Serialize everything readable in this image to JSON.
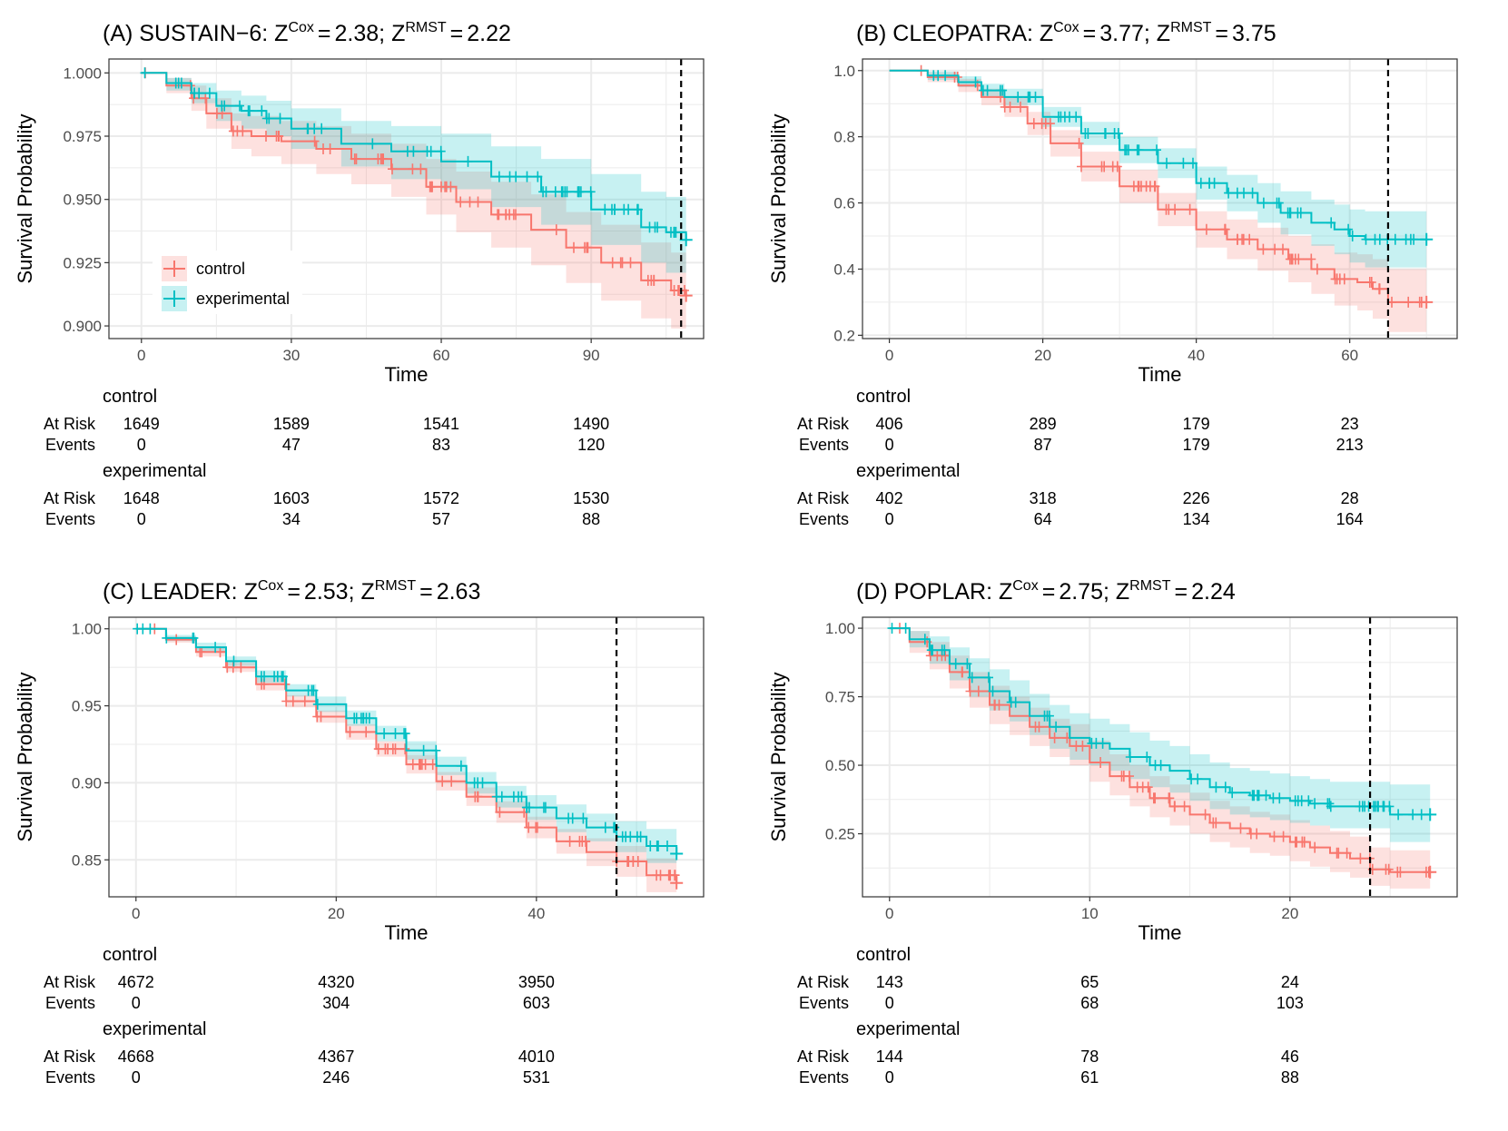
{
  "colors": {
    "control": "#F8766D",
    "experimental": "#00BFC4",
    "grid": "#EBEBEB",
    "frame": "#333333"
  },
  "risk_labels": {
    "at_risk": "At Risk",
    "events": "Events"
  },
  "chart_data": [
    {
      "id": "A",
      "type": "line",
      "title_prefix": "(A) SUSTAIN−6:",
      "z_cox": "2.38",
      "z_rmst": "2.22",
      "title_z_label": "Z",
      "title_cox_sup": "Cox",
      "title_rmst_sup": "RMST",
      "title_eq": "=",
      "title_sep": ";",
      "xlabel": "Time",
      "ylabel": "Survival Probability",
      "xlim": [
        -6.5,
        112.5
      ],
      "ylim": [
        0.895,
        1.0055
      ],
      "xticks": [
        0,
        30,
        60,
        90
      ],
      "xtick_labels": [
        "0",
        "30",
        "60",
        "90"
      ],
      "yticks": [
        0.9,
        0.925,
        0.95,
        0.975,
        1.0
      ],
      "ytick_labels": [
        "0.900",
        "0.925",
        "0.950",
        "0.975",
        "1.000"
      ],
      "cutoff": 108,
      "legend": {
        "show": true,
        "position": "bottom-left",
        "entries": [
          "control",
          "experimental"
        ]
      },
      "series": [
        {
          "name": "control",
          "x": [
            0,
            5,
            10,
            13,
            18,
            22,
            28,
            35,
            42,
            50,
            57,
            63,
            70,
            78,
            85,
            92,
            100,
            106,
            109
          ],
          "y": [
            1.0,
            0.995,
            0.99,
            0.984,
            0.977,
            0.975,
            0.973,
            0.97,
            0.966,
            0.962,
            0.955,
            0.949,
            0.944,
            0.938,
            0.931,
            0.925,
            0.918,
            0.914,
            0.912
          ],
          "lower": [
            1.0,
            0.992,
            0.985,
            0.978,
            0.97,
            0.967,
            0.964,
            0.96,
            0.956,
            0.951,
            0.944,
            0.937,
            0.931,
            0.924,
            0.917,
            0.91,
            0.903,
            0.899,
            0.897
          ],
          "upper": [
            1.0,
            0.998,
            0.995,
            0.99,
            0.984,
            0.983,
            0.981,
            0.979,
            0.976,
            0.972,
            0.966,
            0.961,
            0.957,
            0.952,
            0.945,
            0.94,
            0.933,
            0.929,
            0.927
          ]
        },
        {
          "name": "experimental",
          "x": [
            0,
            5,
            10,
            15,
            20,
            25,
            30,
            40,
            50,
            60,
            70,
            80,
            90,
            100,
            105,
            109
          ],
          "y": [
            1.0,
            0.996,
            0.992,
            0.987,
            0.985,
            0.982,
            0.978,
            0.972,
            0.969,
            0.965,
            0.959,
            0.953,
            0.946,
            0.939,
            0.937,
            0.934
          ],
          "lower": [
            1.0,
            0.993,
            0.988,
            0.981,
            0.978,
            0.975,
            0.97,
            0.963,
            0.958,
            0.954,
            0.947,
            0.94,
            0.932,
            0.925,
            0.921,
            0.916
          ],
          "upper": [
            1.0,
            0.998,
            0.996,
            0.993,
            0.991,
            0.989,
            0.986,
            0.981,
            0.979,
            0.976,
            0.971,
            0.966,
            0.96,
            0.953,
            0.951,
            0.948
          ]
        }
      ],
      "risk_table": {
        "times": [
          0,
          30,
          60,
          90
        ],
        "groups": [
          {
            "name": "control",
            "at_risk": [
              "1649",
              "1589",
              "1541",
              "1490"
            ],
            "events": [
              "0",
              "47",
              "83",
              "120"
            ]
          },
          {
            "name": "experimental",
            "at_risk": [
              "1648",
              "1603",
              "1572",
              "1530"
            ],
            "events": [
              "0",
              "34",
              "57",
              "88"
            ]
          }
        ]
      }
    },
    {
      "id": "B",
      "type": "line",
      "title_prefix": "(B) CLEOPATRA:",
      "z_cox": "3.77",
      "z_rmst": "3.75",
      "title_z_label": "Z",
      "title_cox_sup": "Cox",
      "title_rmst_sup": "RMST",
      "title_eq": "=",
      "title_sep": ";",
      "xlabel": "Time",
      "ylabel": "Survival Probability",
      "xlim": [
        -3.5,
        74
      ],
      "ylim": [
        0.19,
        1.035
      ],
      "xticks": [
        0,
        20,
        40,
        60
      ],
      "xtick_labels": [
        "0",
        "20",
        "40",
        "60"
      ],
      "yticks": [
        0.2,
        0.4,
        0.6,
        0.8,
        1.0
      ],
      "ytick_labels": [
        "0.2",
        "0.4",
        "0.6",
        "0.8",
        "1.0"
      ],
      "cutoff": 65,
      "legend": {
        "show": false
      },
      "series": [
        {
          "name": "control",
          "x": [
            0,
            5,
            9,
            12,
            15,
            18,
            21,
            25,
            30,
            35,
            40,
            44,
            48,
            52,
            55,
            58,
            61,
            63,
            65,
            70
          ],
          "y": [
            1.0,
            0.98,
            0.955,
            0.92,
            0.89,
            0.84,
            0.78,
            0.71,
            0.65,
            0.58,
            0.52,
            0.49,
            0.46,
            0.43,
            0.4,
            0.37,
            0.36,
            0.34,
            0.3,
            0.3
          ],
          "lower": [
            1.0,
            0.965,
            0.935,
            0.895,
            0.86,
            0.805,
            0.74,
            0.665,
            0.6,
            0.53,
            0.465,
            0.43,
            0.395,
            0.36,
            0.325,
            0.29,
            0.275,
            0.25,
            0.21,
            0.21
          ],
          "upper": [
            1.0,
            0.995,
            0.975,
            0.945,
            0.92,
            0.875,
            0.82,
            0.755,
            0.7,
            0.63,
            0.575,
            0.55,
            0.525,
            0.5,
            0.475,
            0.45,
            0.445,
            0.43,
            0.4,
            0.4
          ]
        },
        {
          "name": "experimental",
          "x": [
            0,
            5,
            9,
            12,
            15,
            20,
            25,
            30,
            35,
            40,
            44,
            48,
            51,
            55,
            58,
            60,
            62,
            65,
            70
          ],
          "y": [
            1.0,
            0.985,
            0.965,
            0.94,
            0.92,
            0.86,
            0.81,
            0.76,
            0.72,
            0.66,
            0.63,
            0.6,
            0.57,
            0.54,
            0.52,
            0.5,
            0.49,
            0.49,
            0.49
          ],
          "lower": [
            1.0,
            0.972,
            0.95,
            0.92,
            0.895,
            0.83,
            0.775,
            0.72,
            0.675,
            0.61,
            0.575,
            0.54,
            0.505,
            0.47,
            0.445,
            0.42,
            0.405,
            0.405,
            0.405
          ],
          "upper": [
            1.0,
            0.997,
            0.983,
            0.96,
            0.945,
            0.89,
            0.845,
            0.8,
            0.765,
            0.71,
            0.685,
            0.66,
            0.635,
            0.61,
            0.595,
            0.58,
            0.575,
            0.575,
            0.575
          ]
        }
      ],
      "risk_table": {
        "times": [
          0,
          20,
          40,
          60
        ],
        "groups": [
          {
            "name": "control",
            "at_risk": [
              "406",
              "289",
              "179",
              "23"
            ],
            "events": [
              "0",
              "87",
              "179",
              "213"
            ]
          },
          {
            "name": "experimental",
            "at_risk": [
              "402",
              "318",
              "226",
              "28"
            ],
            "events": [
              "0",
              "64",
              "134",
              "164"
            ]
          }
        ]
      }
    },
    {
      "id": "C",
      "type": "line",
      "title_prefix": "(C) LEADER:",
      "z_cox": "2.53",
      "z_rmst": "2.63",
      "title_z_label": "Z",
      "title_cox_sup": "Cox",
      "title_rmst_sup": "RMST",
      "title_eq": "=",
      "title_sep": ";",
      "xlabel": "Time",
      "ylabel": "Survival Probability",
      "xlim": [
        -2.7,
        56.7
      ],
      "ylim": [
        0.826,
        1.0075
      ],
      "xticks": [
        0,
        20,
        40
      ],
      "xtick_labels": [
        "0",
        "20",
        "40"
      ],
      "yticks": [
        0.85,
        0.9,
        0.95,
        1.0
      ],
      "ytick_labels": [
        "0.85",
        "0.90",
        "0.95",
        "1.00"
      ],
      "cutoff": 48,
      "legend": {
        "show": false
      },
      "series": [
        {
          "name": "control",
          "x": [
            0,
            3,
            6,
            9,
            12,
            15,
            18,
            21,
            24,
            27,
            30,
            33,
            36,
            39,
            42,
            45,
            48,
            51,
            54
          ],
          "y": [
            1.0,
            0.993,
            0.985,
            0.975,
            0.964,
            0.953,
            0.943,
            0.933,
            0.922,
            0.912,
            0.901,
            0.891,
            0.881,
            0.871,
            0.862,
            0.855,
            0.849,
            0.84,
            0.835
          ],
          "lower": [
            1.0,
            0.991,
            0.982,
            0.972,
            0.96,
            0.949,
            0.939,
            0.928,
            0.917,
            0.906,
            0.895,
            0.885,
            0.874,
            0.864,
            0.854,
            0.846,
            0.839,
            0.829,
            0.824
          ],
          "upper": [
            1.0,
            0.995,
            0.988,
            0.978,
            0.968,
            0.957,
            0.947,
            0.938,
            0.927,
            0.918,
            0.907,
            0.897,
            0.888,
            0.878,
            0.87,
            0.864,
            0.859,
            0.851,
            0.846
          ]
        },
        {
          "name": "experimental",
          "x": [
            0,
            3,
            6,
            9,
            12,
            15,
            18,
            21,
            24,
            27,
            30,
            33,
            36,
            39,
            42,
            45,
            48,
            51,
            54
          ],
          "y": [
            1.0,
            0.994,
            0.988,
            0.979,
            0.969,
            0.96,
            0.951,
            0.942,
            0.932,
            0.921,
            0.911,
            0.9,
            0.891,
            0.884,
            0.877,
            0.871,
            0.865,
            0.859,
            0.854
          ],
          "lower": [
            1.0,
            0.992,
            0.985,
            0.976,
            0.965,
            0.956,
            0.946,
            0.937,
            0.927,
            0.915,
            0.905,
            0.893,
            0.884,
            0.876,
            0.868,
            0.862,
            0.855,
            0.848,
            0.843
          ],
          "upper": [
            1.0,
            0.996,
            0.991,
            0.982,
            0.973,
            0.964,
            0.956,
            0.947,
            0.937,
            0.927,
            0.917,
            0.907,
            0.898,
            0.892,
            0.886,
            0.88,
            0.875,
            0.87,
            0.865
          ]
        }
      ],
      "risk_table": {
        "times": [
          0,
          20,
          40
        ],
        "groups": [
          {
            "name": "control",
            "at_risk": [
              "4672",
              "4320",
              "3950"
            ],
            "events": [
              "0",
              "304",
              "603"
            ]
          },
          {
            "name": "experimental",
            "at_risk": [
              "4668",
              "4367",
              "4010"
            ],
            "events": [
              "0",
              "246",
              "531"
            ]
          }
        ]
      }
    },
    {
      "id": "D",
      "type": "line",
      "title_prefix": "(D) POPLAR:",
      "z_cox": "2.75",
      "z_rmst": "2.24",
      "title_z_label": "Z",
      "title_cox_sup": "Cox",
      "title_rmst_sup": "RMST",
      "title_eq": "=",
      "title_sep": ";",
      "xlabel": "Time",
      "ylabel": "Survival Probability",
      "xlim": [
        -1.35,
        28.35
      ],
      "ylim": [
        0.02,
        1.04
      ],
      "xticks": [
        0,
        10,
        20
      ],
      "xtick_labels": [
        "0",
        "10",
        "20"
      ],
      "yticks": [
        0.25,
        0.5,
        0.75,
        1.0
      ],
      "ytick_labels": [
        "0.25",
        "0.50",
        "0.75",
        "1.00"
      ],
      "cutoff": 24,
      "legend": {
        "show": false
      },
      "series": [
        {
          "name": "control",
          "x": [
            0,
            1,
            2,
            3,
            4,
            5,
            6,
            7,
            8,
            9,
            10,
            11,
            12,
            13,
            14,
            15,
            16,
            17,
            18,
            19,
            20,
            21,
            22,
            23,
            24,
            25,
            27
          ],
          "y": [
            1.0,
            0.95,
            0.9,
            0.84,
            0.77,
            0.72,
            0.68,
            0.64,
            0.6,
            0.57,
            0.51,
            0.46,
            0.42,
            0.38,
            0.35,
            0.32,
            0.29,
            0.27,
            0.25,
            0.24,
            0.22,
            0.2,
            0.18,
            0.16,
            0.12,
            0.11,
            0.11
          ],
          "lower": [
            1.0,
            0.91,
            0.85,
            0.78,
            0.71,
            0.65,
            0.61,
            0.57,
            0.53,
            0.5,
            0.44,
            0.39,
            0.35,
            0.31,
            0.28,
            0.25,
            0.22,
            0.2,
            0.18,
            0.17,
            0.15,
            0.13,
            0.11,
            0.09,
            0.06,
            0.05,
            0.05
          ],
          "upper": [
            1.0,
            0.99,
            0.95,
            0.9,
            0.84,
            0.79,
            0.75,
            0.71,
            0.67,
            0.65,
            0.59,
            0.54,
            0.5,
            0.46,
            0.43,
            0.4,
            0.37,
            0.35,
            0.33,
            0.32,
            0.3,
            0.28,
            0.26,
            0.24,
            0.2,
            0.19,
            0.19
          ]
        },
        {
          "name": "experimental",
          "x": [
            0,
            1,
            2,
            3,
            4,
            5,
            6,
            7,
            8,
            9,
            10,
            11,
            12,
            13,
            14,
            15,
            16,
            17,
            18,
            19,
            20,
            21,
            22,
            23,
            24,
            25,
            27
          ],
          "y": [
            1.0,
            0.96,
            0.92,
            0.87,
            0.82,
            0.77,
            0.73,
            0.68,
            0.64,
            0.6,
            0.58,
            0.56,
            0.53,
            0.5,
            0.48,
            0.45,
            0.42,
            0.4,
            0.39,
            0.38,
            0.37,
            0.36,
            0.35,
            0.35,
            0.35,
            0.32,
            0.32
          ],
          "lower": [
            1.0,
            0.93,
            0.87,
            0.81,
            0.75,
            0.7,
            0.66,
            0.61,
            0.56,
            0.52,
            0.5,
            0.48,
            0.45,
            0.42,
            0.4,
            0.37,
            0.34,
            0.32,
            0.31,
            0.3,
            0.29,
            0.28,
            0.27,
            0.27,
            0.27,
            0.22,
            0.22
          ],
          "upper": [
            1.0,
            0.99,
            0.97,
            0.93,
            0.89,
            0.85,
            0.81,
            0.76,
            0.72,
            0.69,
            0.67,
            0.65,
            0.62,
            0.59,
            0.57,
            0.54,
            0.51,
            0.49,
            0.48,
            0.47,
            0.46,
            0.45,
            0.44,
            0.44,
            0.44,
            0.43,
            0.43
          ]
        }
      ],
      "risk_table": {
        "times": [
          0,
          10,
          20
        ],
        "groups": [
          {
            "name": "control",
            "at_risk": [
              "143",
              "65",
              "24"
            ],
            "events": [
              "0",
              "68",
              "103"
            ]
          },
          {
            "name": "experimental",
            "at_risk": [
              "144",
              "78",
              "46"
            ],
            "events": [
              "0",
              "61",
              "88"
            ]
          }
        ]
      }
    }
  ]
}
